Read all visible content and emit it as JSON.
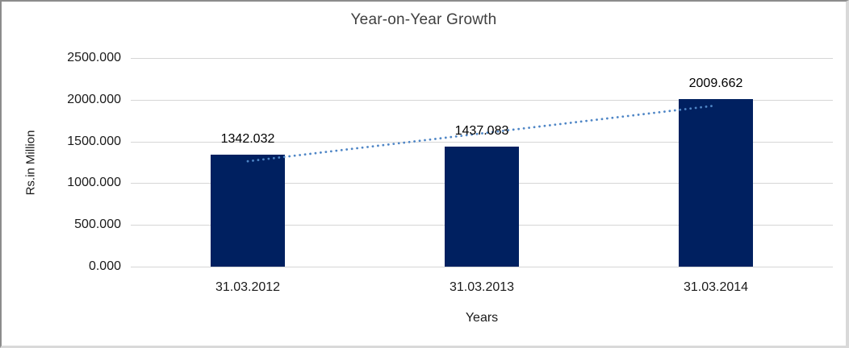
{
  "chart_data": {
    "type": "bar",
    "title": "Year-on-Year Growth",
    "xlabel": "Years",
    "ylabel": "Rs.in Million",
    "categories": [
      "31.03.2012",
      "31.03.2013",
      "31.03.2014"
    ],
    "values": [
      1342.032,
      1437.083,
      2009.662
    ],
    "data_labels": [
      "1342.032",
      "1437.083",
      "2009.662"
    ],
    "y_ticks": [
      "0.000",
      "500.000",
      "1000.000",
      "1500.000",
      "2000.000",
      "2500.000"
    ],
    "ylim": [
      0,
      2500
    ],
    "y_tick_step": 500,
    "grid": true,
    "legend": "none",
    "trendline": "linear-dotted",
    "colors": {
      "bar": "#002060",
      "trendline": "#4f86c6",
      "gridline": "#d6d6d6",
      "title_text": "#404040",
      "axis_text": "#1a1a1a",
      "background": "#ffffff"
    }
  }
}
